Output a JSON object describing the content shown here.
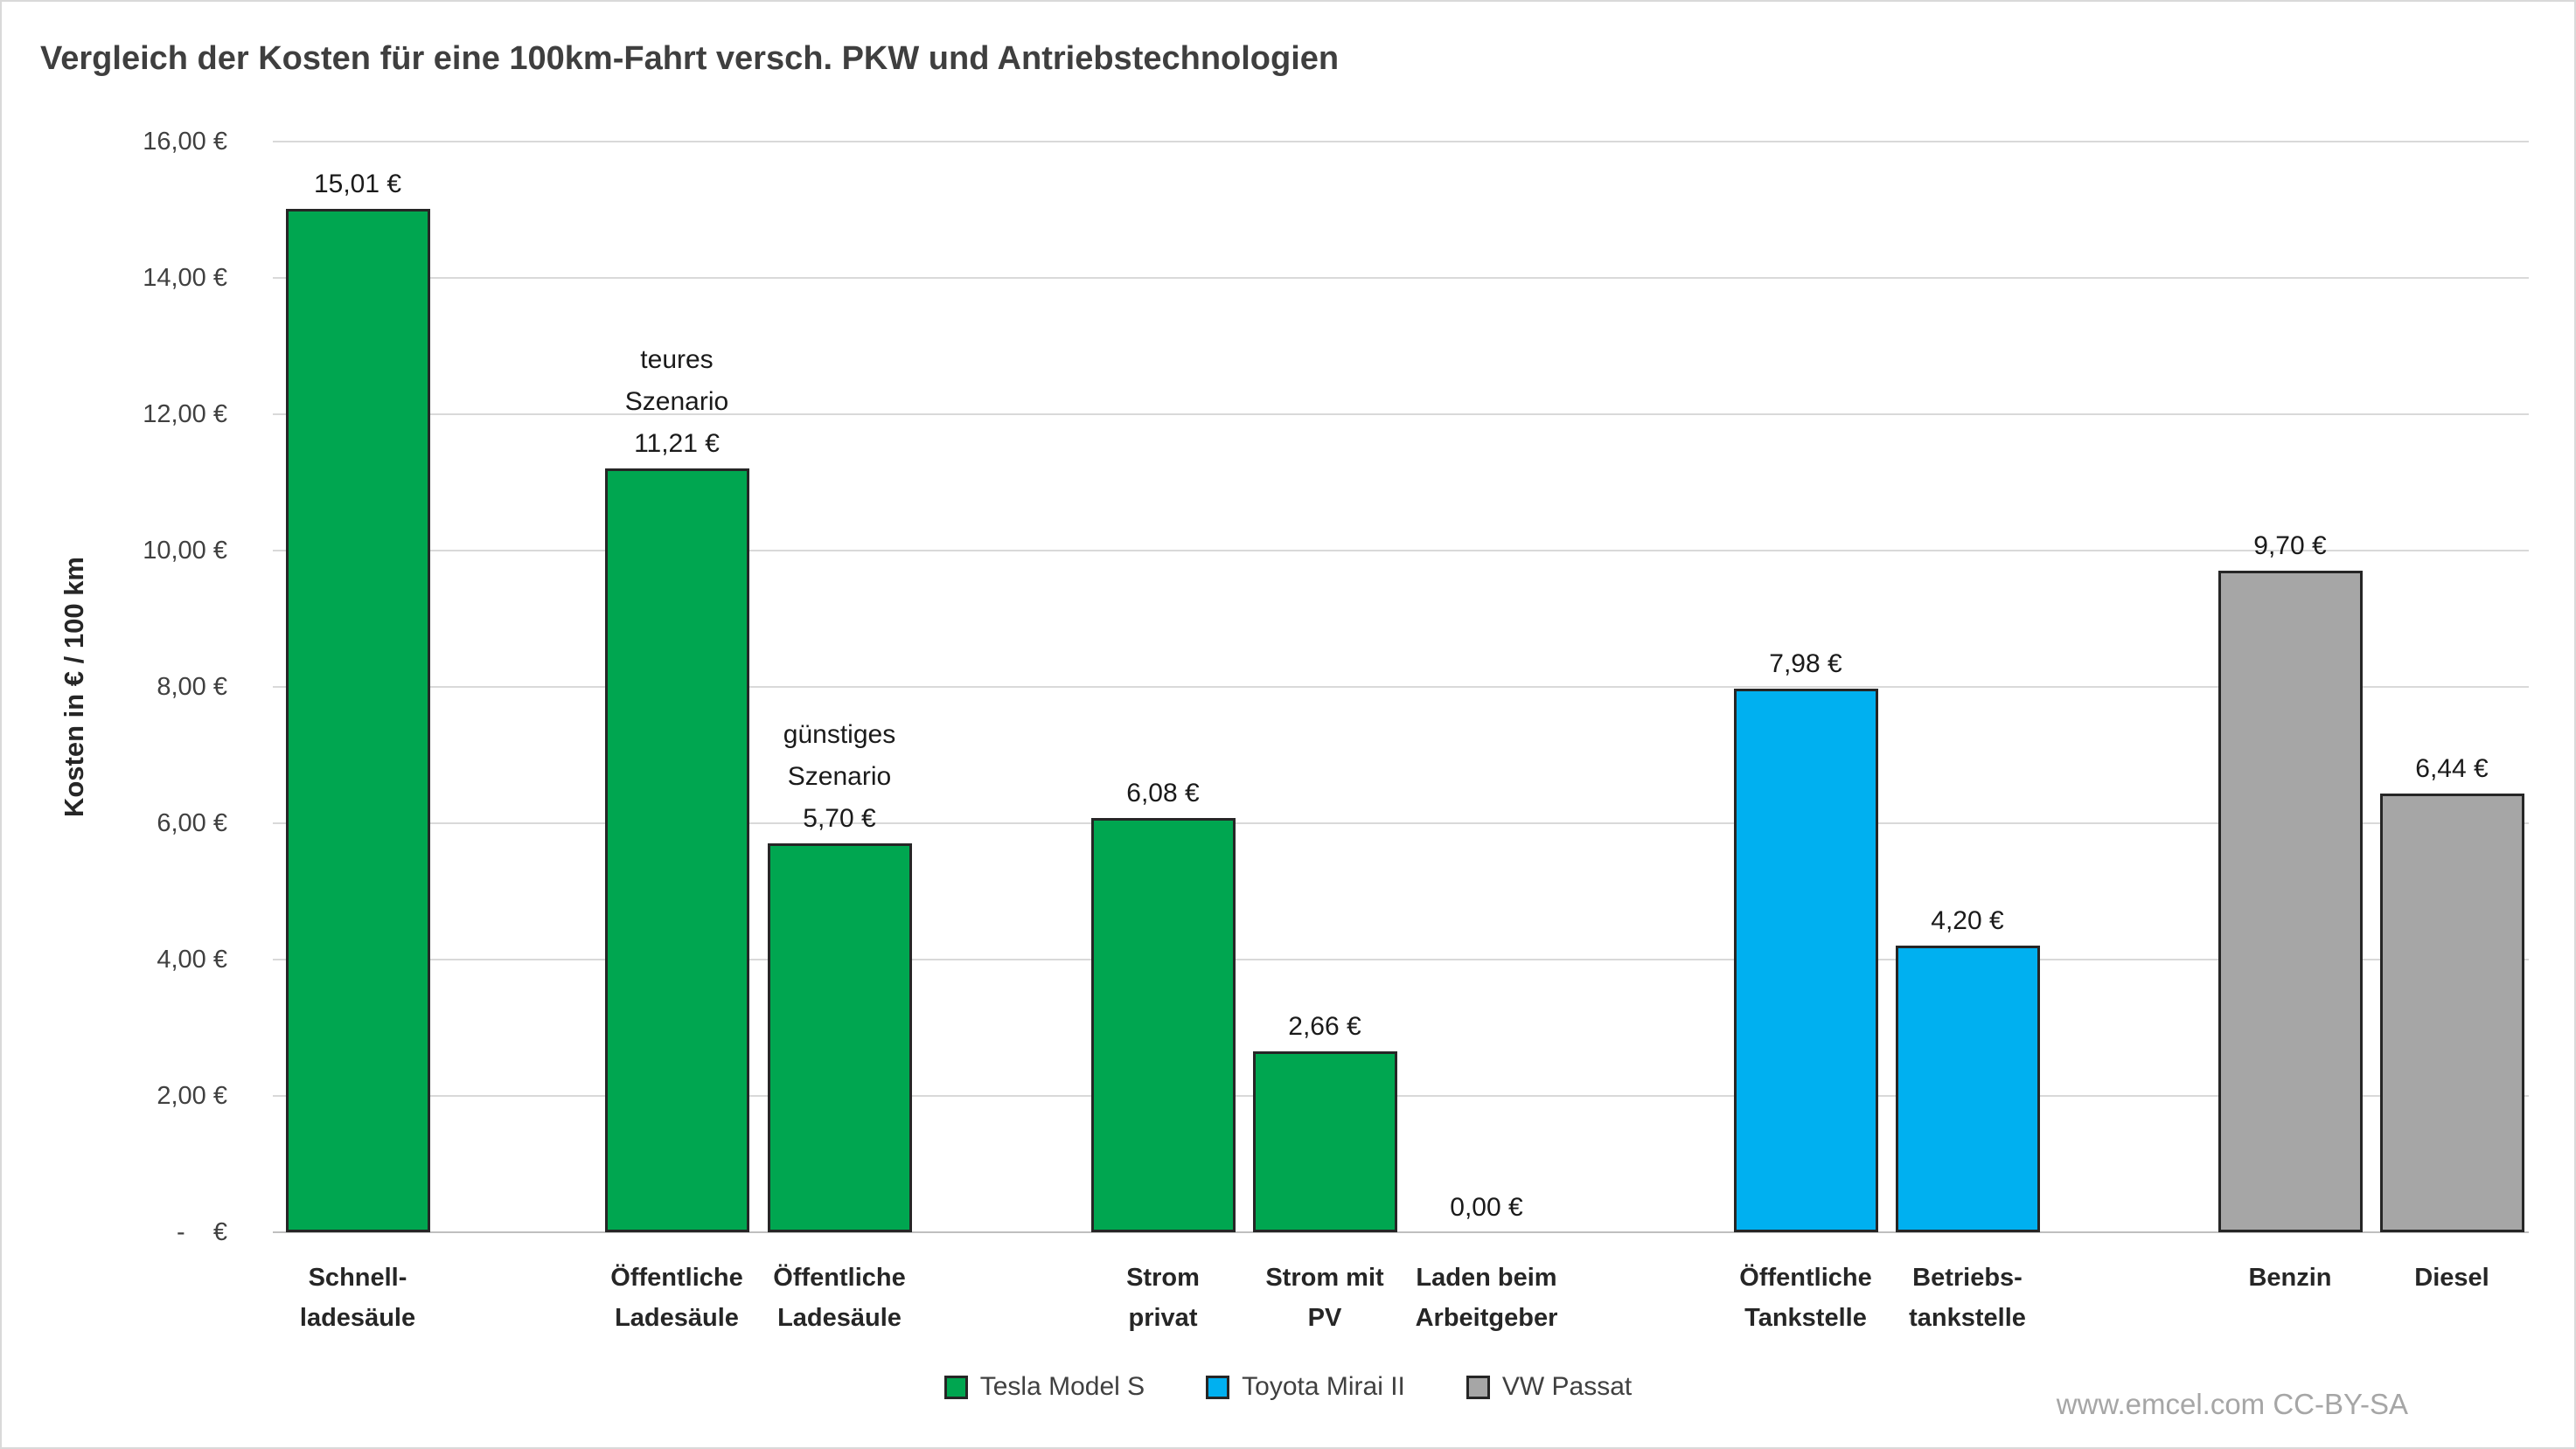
{
  "watermark": "www.emcel.com CC-BY-SA",
  "chart_data": {
    "type": "bar",
    "title": "Vergleich der Kosten für eine 100km-Fahrt versch. PKW und Antriebstechnologien",
    "xlabel": "",
    "ylabel": "Kosten in € / 100 km",
    "ylim": [
      0,
      16
    ],
    "ytick_step": 2,
    "ytick_labels": [
      "-    €",
      "2,00 €",
      "4,00 €",
      "6,00 €",
      "8,00 €",
      "10,00 €",
      "12,00 €",
      "14,00 €",
      "16,00 €"
    ],
    "grid": true,
    "grid_color": "#D9D9D9",
    "axis_color": "#BFBFBF",
    "bar_border": "#262626",
    "legend_position": "bottom",
    "legend": [
      {
        "label": "Tesla Model S",
        "color": "#00A650"
      },
      {
        "label": "Toyota Mirai II",
        "color": "#00B0F0"
      },
      {
        "label": "VW Passat",
        "color": "#A6A6A6"
      }
    ],
    "bars": [
      {
        "series": "Tesla Model S",
        "category": [
          "Schnell-",
          "ladesäule"
        ],
        "value": 15.01,
        "value_label": "15,01 €",
        "annotation": []
      },
      {
        "series": "Tesla Model S",
        "category": [
          "Öffentliche",
          "Ladesäule"
        ],
        "value": 11.21,
        "value_label": "11,21 €",
        "annotation": [
          "teures",
          "Szenario"
        ]
      },
      {
        "series": "Tesla Model S",
        "category": [
          "Öffentliche",
          "Ladesäule"
        ],
        "value": 5.7,
        "value_label": "5,70 €",
        "annotation": [
          "günstiges",
          "Szenario"
        ]
      },
      {
        "series": "Tesla Model S",
        "category": [
          "Strom",
          "privat"
        ],
        "value": 6.08,
        "value_label": "6,08 €",
        "annotation": []
      },
      {
        "series": "Tesla Model S",
        "category": [
          "Strom mit",
          "PV"
        ],
        "value": 2.66,
        "value_label": "2,66 €",
        "annotation": []
      },
      {
        "series": "Tesla Model S",
        "category": [
          "Laden beim",
          "Arbeitgeber"
        ],
        "value": 0,
        "value_label": "0,00 €",
        "annotation": []
      },
      {
        "series": "Toyota Mirai II",
        "category": [
          "Öffentliche",
          "Tankstelle"
        ],
        "value": 7.98,
        "value_label": "7,98 €",
        "annotation": []
      },
      {
        "series": "Toyota Mirai II",
        "category": [
          "Betriebs-",
          "tankstelle"
        ],
        "value": 4.2,
        "value_label": "4,20 €",
        "annotation": []
      },
      {
        "series": "VW Passat",
        "category": [
          "Benzin"
        ],
        "value": 9.7,
        "value_label": "9,70 €",
        "annotation": []
      },
      {
        "series": "VW Passat",
        "category": [
          "Diesel"
        ],
        "value": 6.44,
        "value_label": "6,44 €",
        "annotation": []
      }
    ]
  }
}
